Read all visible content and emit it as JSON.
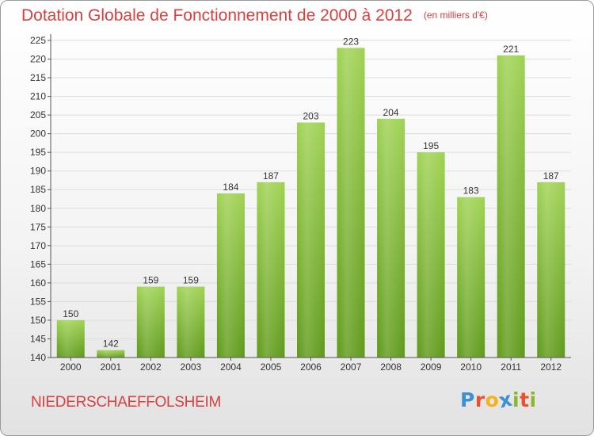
{
  "title": "Dotation Globale de Fonctionnement de 2000 à 2012",
  "unit": "(en milliers d'€)",
  "commune": "NIEDERSCHAEFFOLSHEIM",
  "brand": {
    "letters": [
      "P",
      "r",
      "o",
      "x",
      "i",
      "t",
      "i"
    ],
    "colors": [
      "#3d8fd3",
      "#e8532e",
      "#f5b21a",
      "#3d8fd3",
      "#86b92d",
      "#e8532e",
      "#86b92d"
    ]
  },
  "colors": {
    "accent": "#d8413f",
    "bar_light": "#9fd253",
    "bar_dark": "#5f9a1a",
    "grid": "#dddddd",
    "axis": "#555555"
  },
  "chart_data": {
    "type": "bar",
    "categories": [
      "2000",
      "2001",
      "2002",
      "2003",
      "2004",
      "2005",
      "2006",
      "2007",
      "2008",
      "2009",
      "2010",
      "2011",
      "2012"
    ],
    "values": [
      150,
      142,
      159,
      159,
      184,
      187,
      203,
      223,
      204,
      195,
      183,
      221,
      187
    ],
    "ylim": [
      140,
      225
    ],
    "yticks": [
      140,
      145,
      150,
      155,
      160,
      165,
      170,
      175,
      180,
      185,
      190,
      195,
      200,
      205,
      210,
      215,
      220,
      225
    ],
    "grid": true,
    "data_labels": true
  }
}
